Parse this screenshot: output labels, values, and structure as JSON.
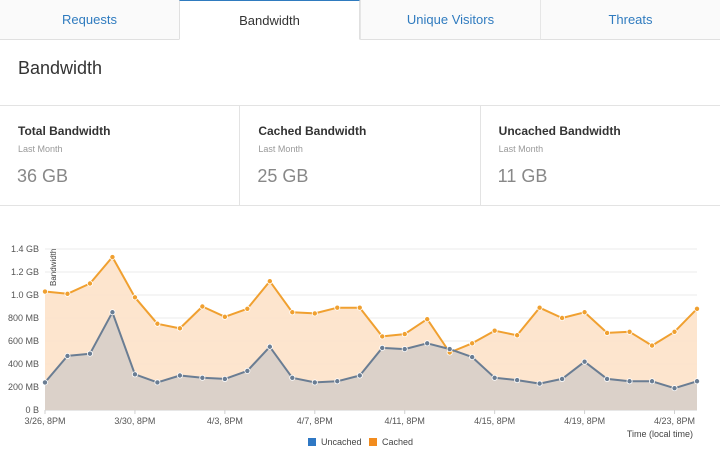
{
  "tabs": [
    {
      "label": "Requests",
      "active": false
    },
    {
      "label": "Bandwidth",
      "active": true
    },
    {
      "label": "Unique Visitors",
      "active": false
    },
    {
      "label": "Threats",
      "active": false
    }
  ],
  "section_title": "Bandwidth",
  "stats": [
    {
      "label": "Total Bandwidth",
      "period": "Last Month",
      "value": "36 GB"
    },
    {
      "label": "Cached Bandwidth",
      "period": "Last Month",
      "value": "25 GB"
    },
    {
      "label": "Uncached Bandwidth",
      "period": "Last Month",
      "value": "11 GB"
    }
  ],
  "colors": {
    "accent": "#2f7bbf",
    "cached": "#f0a030",
    "cached_fill": "#fde4cb",
    "uncached": "#6a7d93",
    "uncached_fill": "#d9d0c8",
    "legend_uncached": "#2f78c4",
    "legend_cached": "#f28c1e"
  },
  "chart_data": {
    "type": "area",
    "ylabel": "Bandwidth",
    "xlabel": "Time (local time)",
    "ylim": [
      0,
      1.4
    ],
    "y_unit": "GB",
    "y_ticks": [
      {
        "value": 0,
        "label": "0 B"
      },
      {
        "value": 0.2,
        "label": "200 MB"
      },
      {
        "value": 0.4,
        "label": "400 MB"
      },
      {
        "value": 0.6,
        "label": "600 MB"
      },
      {
        "value": 0.8,
        "label": "800 MB"
      },
      {
        "value": 1.0,
        "label": "1.0 GB"
      },
      {
        "value": 1.2,
        "label": "1.2 GB"
      },
      {
        "value": 1.4,
        "label": "1.4 GB"
      }
    ],
    "x_ticks": [
      {
        "index": 0,
        "label": "3/26, 8PM"
      },
      {
        "index": 4,
        "label": "3/30, 8PM"
      },
      {
        "index": 8,
        "label": "4/3, 8PM"
      },
      {
        "index": 12,
        "label": "4/7, 8PM"
      },
      {
        "index": 16,
        "label": "4/11, 8PM"
      },
      {
        "index": 20,
        "label": "4/15, 8PM"
      },
      {
        "index": 24,
        "label": "4/19, 8PM"
      },
      {
        "index": 28,
        "label": "4/23, 8PM"
      }
    ],
    "legend": [
      "Uncached",
      "Cached"
    ],
    "series": [
      {
        "name": "Uncached",
        "values": [
          0.24,
          0.47,
          0.49,
          0.85,
          0.31,
          0.24,
          0.3,
          0.28,
          0.27,
          0.34,
          0.55,
          0.28,
          0.24,
          0.25,
          0.3,
          0.54,
          0.53,
          0.58,
          0.53,
          0.46,
          0.28,
          0.26,
          0.23,
          0.27,
          0.42,
          0.27,
          0.25,
          0.25,
          0.19,
          0.25
        ]
      },
      {
        "name": "Cached",
        "values": [
          1.03,
          1.01,
          1.1,
          1.33,
          0.98,
          0.75,
          0.71,
          0.9,
          0.81,
          0.88,
          1.12,
          0.85,
          0.84,
          0.89,
          0.89,
          0.64,
          0.66,
          0.79,
          0.5,
          0.58,
          0.69,
          0.65,
          0.89,
          0.8,
          0.85,
          0.67,
          0.68,
          0.56,
          0.68,
          0.88
        ]
      }
    ]
  }
}
